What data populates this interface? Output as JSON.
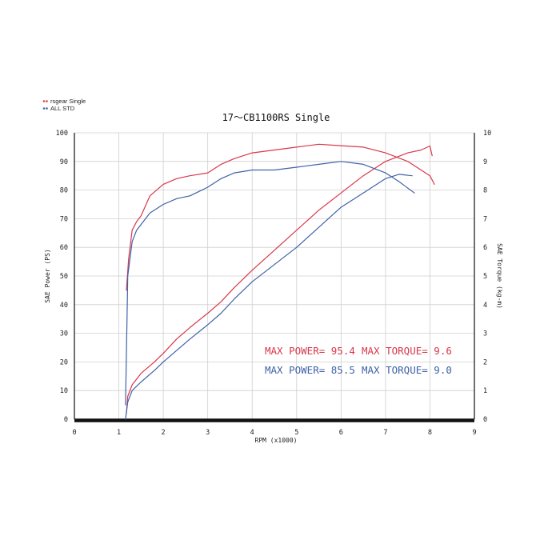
{
  "chart_data": {
    "type": "line",
    "title": "17～CB1100RS Single",
    "xlabel": "RPM (x1000)",
    "ylabel_left": "SAE Power (PS)",
    "ylabel_right": "SAE Torque (kg-m)",
    "xlim": [
      0,
      9
    ],
    "ylim_left": [
      0,
      100
    ],
    "ylim_right": [
      0,
      10
    ],
    "x_ticks": [
      "0",
      "1",
      "2",
      "3",
      "4",
      "5",
      "6",
      "7",
      "8",
      "9"
    ],
    "y_ticks_left": [
      "0",
      "10",
      "20",
      "30",
      "40",
      "50",
      "60",
      "70",
      "80",
      "90",
      "100"
    ],
    "y_ticks_right": [
      "0",
      "1",
      "2",
      "3",
      "4",
      "5",
      "6",
      "7",
      "8",
      "9",
      "10"
    ],
    "grid": true,
    "legend_placement": "top-left",
    "legend": [
      {
        "label": "rsgear Single",
        "color": "#d9374a"
      },
      {
        "label": "ALL STD",
        "color": "#3f62a8"
      }
    ],
    "series": [
      {
        "name": "rsgear Single",
        "quantity": "power",
        "axis": "left",
        "color": "#d9374a",
        "x": [
          1.17,
          1.2,
          1.3,
          1.5,
          1.8,
          2.0,
          2.3,
          2.6,
          3.0,
          3.3,
          3.6,
          4.0,
          4.5,
          5.0,
          5.5,
          6.0,
          6.5,
          7.0,
          7.5,
          7.8,
          8.0,
          8.05
        ],
        "y": [
          2,
          8,
          12,
          16,
          20,
          23,
          28,
          32,
          37,
          41,
          46,
          52,
          59,
          66,
          73,
          79,
          85,
          90,
          93,
          94,
          95.4,
          92
        ]
      },
      {
        "name": "rsgear Single",
        "quantity": "torque",
        "axis": "right",
        "color": "#d9374a",
        "x": [
          1.17,
          1.22,
          1.3,
          1.4,
          1.5,
          1.7,
          2.0,
          2.3,
          2.6,
          3.0,
          3.3,
          3.6,
          4.0,
          4.5,
          5.0,
          5.5,
          6.0,
          6.5,
          7.0,
          7.5,
          7.8,
          8.0,
          8.1
        ],
        "y": [
          4.5,
          5.6,
          6.6,
          6.9,
          7.1,
          7.8,
          8.2,
          8.4,
          8.5,
          8.6,
          8.9,
          9.1,
          9.3,
          9.4,
          9.5,
          9.6,
          9.55,
          9.5,
          9.3,
          9.0,
          8.7,
          8.5,
          8.2
        ]
      },
      {
        "name": "ALL STD",
        "quantity": "power",
        "axis": "left",
        "color": "#3f62a8",
        "x": [
          1.15,
          1.2,
          1.3,
          1.5,
          1.8,
          2.0,
          2.3,
          2.6,
          3.0,
          3.3,
          3.6,
          4.0,
          4.5,
          5.0,
          5.5,
          6.0,
          6.5,
          7.0,
          7.3,
          7.6
        ],
        "y": [
          0,
          6,
          10,
          13,
          17,
          20,
          24,
          28,
          33,
          37,
          42,
          48,
          54,
          60,
          67,
          74,
          79,
          84,
          85.5,
          85
        ]
      },
      {
        "name": "ALL STD",
        "quantity": "torque",
        "axis": "right",
        "color": "#3f62a8",
        "x": [
          1.15,
          1.2,
          1.3,
          1.4,
          1.5,
          1.7,
          2.0,
          2.3,
          2.6,
          3.0,
          3.3,
          3.6,
          4.0,
          4.5,
          5.0,
          5.5,
          6.0,
          6.5,
          7.0,
          7.3,
          7.65
        ],
        "y": [
          0.5,
          5.0,
          6.2,
          6.6,
          6.8,
          7.2,
          7.5,
          7.7,
          7.8,
          8.1,
          8.4,
          8.6,
          8.7,
          8.7,
          8.8,
          8.9,
          9.0,
          8.9,
          8.6,
          8.3,
          7.9
        ]
      }
    ],
    "annotations": {
      "red": {
        "power_label": "MAX POWER= 95.4",
        "torque_label": "MAX TORQUE= 9.6"
      },
      "blue": {
        "power_label": "MAX POWER= 85.5",
        "torque_label": "MAX TORQUE= 9.0"
      }
    }
  }
}
